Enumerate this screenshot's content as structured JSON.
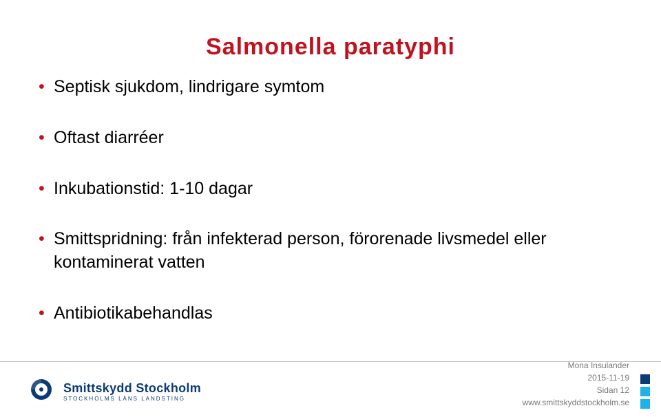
{
  "title": {
    "text": "Salmonella paratyphi",
    "color": "#c1121f",
    "fontsize": 34
  },
  "bullets": {
    "fontsize": 25,
    "color": "#000000",
    "marker_color": "#c1121f",
    "items": [
      "Septisk sjukdom, lindrigare symtom",
      "Oftast diarréer",
      "Inkubationstid: 1-10 dagar",
      "Smittspridning: från infekterad person, förorenade livsmedel eller kontaminerat vatten",
      "Antibiotikabehandlas"
    ]
  },
  "footer": {
    "rule_color": "#bfbfbf",
    "logo": {
      "main": "Smittskydd Stockholm",
      "sub": "STOCKHOLMS LÄNS LANDSTING",
      "brand_color": "#0a3a78"
    },
    "meta": {
      "author": "Mona Insulander",
      "date": "2015-11-19",
      "page": "Sidan 12",
      "url": "www.smittskyddstockholm.se",
      "text_color": "#7a7a7a",
      "fontsize": 12
    },
    "squares": {
      "colors": [
        "#0a3a78",
        "#1fb2e6",
        "#1fb2e6"
      ],
      "size": 14
    }
  }
}
